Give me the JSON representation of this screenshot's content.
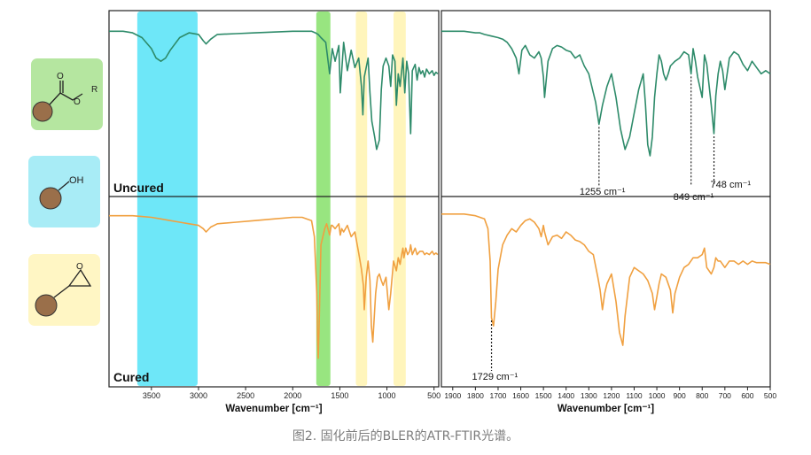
{
  "caption": "图2. 固化前后的BLER的ATR-FTIR光谱。",
  "legend_icons": [
    {
      "name": "ester",
      "label": "R",
      "bg": "#b5e6a0"
    },
    {
      "name": "hydroxyl",
      "label": "OH",
      "bg": "#a8ecf6"
    },
    {
      "name": "epoxide",
      "label": "",
      "bg": "#fff6c4"
    }
  ],
  "colors": {
    "uncured": "#2e8b6a",
    "cured": "#f0a040",
    "band_cyan": "#55e3f7",
    "band_green": "#86e06a",
    "band_yellow": "#fff2a6",
    "bead": "#9a6f4a"
  },
  "chart_data": [
    {
      "type": "line",
      "panel": "left",
      "xlabel": "Wavenumber [cm⁻¹]",
      "xlim": [
        3950,
        450
      ],
      "x_ticks": [
        3500,
        3000,
        2500,
        2000,
        1500,
        1000,
        500
      ],
      "highlight_bands": [
        {
          "from": 3650,
          "to": 3010,
          "color": "cyan"
        },
        {
          "from": 1750,
          "to": 1600,
          "color": "green"
        },
        {
          "from": 1330,
          "to": 1210,
          "color": "yellow"
        },
        {
          "from": 930,
          "to": 800,
          "color": "yellow"
        }
      ],
      "series": [
        {
          "name": "Uncured",
          "x": [
            3950,
            3800,
            3700,
            3600,
            3500,
            3450,
            3400,
            3350,
            3300,
            3200,
            3100,
            3000,
            2950,
            2920,
            2870,
            2800,
            2600,
            2400,
            2200,
            2000,
            1900,
            1800,
            1760,
            1730,
            1700,
            1650,
            1608,
            1580,
            1550,
            1510,
            1495,
            1460,
            1420,
            1380,
            1340,
            1300,
            1270,
            1255,
            1240,
            1200,
            1180,
            1160,
            1130,
            1110,
            1080,
            1060,
            1040,
            1010,
            980,
            960,
            940,
            915,
            900,
            880,
            860,
            830,
            810,
            790,
            770,
            748,
            730,
            700,
            680,
            660,
            640,
            620,
            600,
            580,
            550,
            520,
            500,
            480,
            460
          ],
          "y": [
            97,
            97,
            96,
            93,
            86,
            80,
            78,
            80,
            85,
            93,
            96,
            95,
            91,
            89,
            92,
            95,
            95.5,
            96,
            96.5,
            97,
            97,
            97,
            96,
            95,
            93,
            90,
            70,
            86,
            78,
            88,
            58,
            90,
            72,
            85,
            74,
            80,
            62,
            44,
            68,
            80,
            58,
            40,
            30,
            22,
            28,
            60,
            75,
            80,
            75,
            62,
            82,
            78,
            50,
            70,
            62,
            80,
            58,
            78,
            70,
            32,
            72,
            76,
            66,
            74,
            70,
            72,
            68,
            73,
            70,
            72,
            69,
            71,
            70
          ]
        },
        {
          "name": "Cured",
          "x": [
            3950,
            3800,
            3700,
            3600,
            3500,
            3400,
            3300,
            3200,
            3100,
            3000,
            2950,
            2920,
            2870,
            2800,
            2600,
            2400,
            2200,
            2000,
            1900,
            1800,
            1770,
            1745,
            1735,
            1729,
            1720,
            1700,
            1660,
            1640,
            1608,
            1590,
            1580,
            1550,
            1510,
            1495,
            1480,
            1460,
            1420,
            1380,
            1340,
            1300,
            1270,
            1250,
            1240,
            1230,
            1220,
            1200,
            1180,
            1165,
            1150,
            1120,
            1100,
            1080,
            1060,
            1040,
            1010,
            980,
            960,
            930,
            900,
            880,
            860,
            840,
            830,
            820,
            800,
            780,
            760,
            748,
            730,
            700,
            680,
            650,
            620,
            600,
            580,
            550,
            520,
            500,
            480,
            460
          ],
          "y": [
            98,
            98,
            98,
            97.5,
            97,
            96,
            95,
            94,
            93,
            92,
            90,
            88,
            91,
            93,
            94,
            95,
            96,
            97,
            97,
            95,
            85,
            50,
            20,
            10,
            30,
            80,
            90,
            93,
            86,
            92,
            92,
            90,
            93,
            86,
            90,
            88,
            92,
            85,
            88,
            75,
            65,
            55,
            40,
            50,
            60,
            70,
            58,
            30,
            20,
            50,
            60,
            62,
            58,
            55,
            60,
            40,
            50,
            70,
            64,
            72,
            68,
            75,
            78,
            72,
            78,
            74,
            76,
            80,
            74,
            78,
            74,
            76,
            76,
            74,
            75,
            74,
            76,
            74,
            75,
            74
          ]
        }
      ]
    },
    {
      "type": "line",
      "panel": "right",
      "xlabel": "Wavenumber [cm⁻¹]",
      "xlim": [
        1950,
        500
      ],
      "x_ticks": [
        1900,
        1800,
        1700,
        1600,
        1500,
        1400,
        1300,
        1200,
        1100,
        1000,
        900,
        800,
        700,
        600,
        500
      ],
      "series": [
        {
          "name": "Uncured",
          "x": [
            1950,
            1900,
            1850,
            1800,
            1780,
            1760,
            1730,
            1700,
            1680,
            1660,
            1640,
            1620,
            1608,
            1595,
            1580,
            1560,
            1540,
            1520,
            1510,
            1500,
            1495,
            1480,
            1460,
            1440,
            1420,
            1400,
            1380,
            1360,
            1340,
            1320,
            1300,
            1280,
            1270,
            1255,
            1240,
            1220,
            1200,
            1180,
            1160,
            1140,
            1120,
            1100,
            1080,
            1060,
            1050,
            1040,
            1030,
            1020,
            1010,
            1000,
            990,
            980,
            970,
            960,
            950,
            940,
            920,
            900,
            880,
            860,
            849,
            840,
            830,
            820,
            800,
            790,
            780,
            760,
            748,
            740,
            730,
            720,
            710,
            700,
            690,
            680,
            660,
            640,
            620,
            600,
            580,
            560,
            540,
            520,
            500
          ],
          "y": [
            97,
            97,
            97,
            96,
            96,
            95,
            94,
            93,
            92,
            90,
            86,
            80,
            70,
            85,
            88,
            82,
            80,
            84,
            80,
            68,
            55,
            78,
            86,
            88,
            87,
            85,
            84,
            80,
            82,
            75,
            70,
            58,
            52,
            38,
            50,
            62,
            70,
            55,
            35,
            22,
            30,
            45,
            60,
            70,
            50,
            25,
            18,
            30,
            55,
            70,
            82,
            78,
            70,
            66,
            70,
            75,
            78,
            80,
            84,
            82,
            70,
            86,
            78,
            68,
            55,
            82,
            76,
            50,
            32,
            56,
            70,
            78,
            72,
            60,
            70,
            80,
            84,
            82,
            76,
            72,
            78,
            74,
            70,
            72,
            70
          ]
        },
        {
          "name": "Cured",
          "x": [
            1950,
            1900,
            1850,
            1800,
            1780,
            1760,
            1745,
            1735,
            1729,
            1720,
            1710,
            1700,
            1680,
            1660,
            1640,
            1620,
            1600,
            1580,
            1560,
            1540,
            1520,
            1510,
            1500,
            1495,
            1480,
            1460,
            1440,
            1420,
            1400,
            1380,
            1360,
            1340,
            1320,
            1300,
            1280,
            1260,
            1250,
            1240,
            1230,
            1220,
            1200,
            1180,
            1165,
            1150,
            1140,
            1120,
            1100,
            1080,
            1060,
            1040,
            1020,
            1010,
            1000,
            990,
            980,
            960,
            940,
            930,
            920,
            900,
            880,
            860,
            840,
            820,
            800,
            790,
            780,
            760,
            748,
            740,
            730,
            720,
            700,
            680,
            660,
            640,
            620,
            600,
            580,
            560,
            540,
            520,
            500
          ],
          "y": [
            99,
            99,
            99,
            98,
            97,
            96,
            90,
            70,
            35,
            30,
            45,
            65,
            80,
            86,
            90,
            88,
            92,
            95,
            96,
            94,
            90,
            85,
            92,
            88,
            80,
            85,
            86,
            84,
            88,
            86,
            83,
            82,
            80,
            76,
            74,
            60,
            52,
            40,
            50,
            56,
            62,
            45,
            26,
            18,
            36,
            60,
            66,
            64,
            62,
            58,
            50,
            40,
            48,
            56,
            62,
            60,
            52,
            38,
            50,
            60,
            66,
            68,
            72,
            72,
            74,
            78,
            66,
            62,
            66,
            72,
            70,
            70,
            66,
            70,
            70,
            68,
            70,
            68,
            70,
            69,
            69,
            69,
            68
          ]
        }
      ],
      "annotations": [
        {
          "series": "Uncured",
          "x": 1255,
          "text": "1255 cm⁻¹"
        },
        {
          "series": "Uncured",
          "x": 849,
          "text": "849 cm⁻¹"
        },
        {
          "series": "Uncured",
          "x": 748,
          "text": "748 cm⁻¹"
        },
        {
          "series": "Cured",
          "x": 1729,
          "text": "1729 cm⁻¹"
        }
      ]
    }
  ],
  "panel_labels": [
    "Uncured",
    "Cured"
  ]
}
